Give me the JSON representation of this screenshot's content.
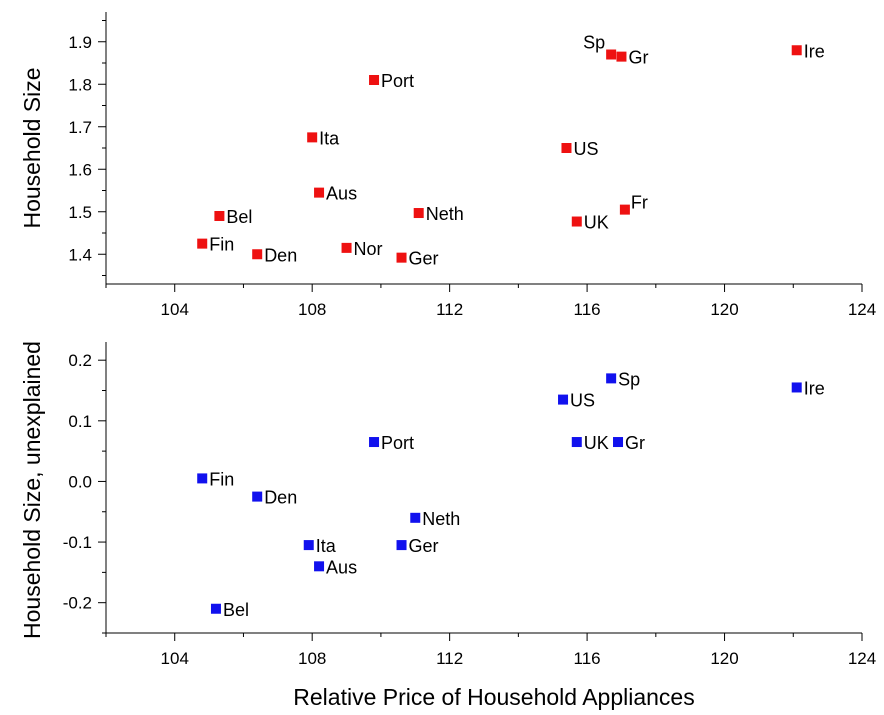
{
  "chart_data": [
    {
      "type": "scatter",
      "ylabel": "Household Size",
      "xlim": [
        102,
        124
      ],
      "ylim": [
        1.33,
        1.97
      ],
      "x_ticks": [
        104,
        108,
        112,
        116,
        120,
        124
      ],
      "y_ticks": [
        1.4,
        1.5,
        1.6,
        1.7,
        1.8,
        1.9
      ],
      "y_tick_labels": [
        "1.4",
        "1.5",
        "1.6",
        "1.7",
        "1.8",
        "1.9"
      ],
      "marker_color": "#ee1111",
      "points": [
        {
          "label": "Sp",
          "x": 116.7,
          "y": 1.87,
          "label_pos": "above-left"
        },
        {
          "label": "Gr",
          "x": 117.0,
          "y": 1.865,
          "label_pos": "right"
        },
        {
          "label": "Ire",
          "x": 122.1,
          "y": 1.88,
          "label_pos": "right"
        },
        {
          "label": "Port",
          "x": 109.8,
          "y": 1.81,
          "label_pos": "right"
        },
        {
          "label": "Ita",
          "x": 108.0,
          "y": 1.675,
          "label_pos": "right"
        },
        {
          "label": "US",
          "x": 115.4,
          "y": 1.65,
          "label_pos": "right"
        },
        {
          "label": "Aus",
          "x": 108.2,
          "y": 1.545,
          "label_pos": "right"
        },
        {
          "label": "Bel",
          "x": 105.3,
          "y": 1.49,
          "label_pos": "right"
        },
        {
          "label": "Neth",
          "x": 111.1,
          "y": 1.497,
          "label_pos": "right"
        },
        {
          "label": "Fr",
          "x": 117.1,
          "y": 1.505,
          "label_pos": "above-right"
        },
        {
          "label": "UK",
          "x": 115.7,
          "y": 1.477,
          "label_pos": "right"
        },
        {
          "label": "Fin",
          "x": 104.8,
          "y": 1.425,
          "label_pos": "right"
        },
        {
          "label": "Den",
          "x": 106.4,
          "y": 1.4,
          "label_pos": "right"
        },
        {
          "label": "Nor",
          "x": 109.0,
          "y": 1.415,
          "label_pos": "right"
        },
        {
          "label": "Ger",
          "x": 110.6,
          "y": 1.392,
          "label_pos": "right"
        }
      ]
    },
    {
      "type": "scatter",
      "xlabel": "Relative Price of Household Appliances",
      "ylabel": "Household Size, unexplained",
      "xlim": [
        102,
        124
      ],
      "ylim": [
        -0.25,
        0.23
      ],
      "x_ticks": [
        104,
        108,
        112,
        116,
        120,
        124
      ],
      "y_ticks": [
        -0.2,
        -0.1,
        0.0,
        0.1,
        0.2
      ],
      "y_tick_labels": [
        "-0.2",
        "-0.1",
        "0.0",
        "0.1",
        "0.2"
      ],
      "marker_color": "#1111ee",
      "points": [
        {
          "label": "Sp",
          "x": 116.7,
          "y": 0.17,
          "label_pos": "right"
        },
        {
          "label": "Ire",
          "x": 122.1,
          "y": 0.155,
          "label_pos": "right"
        },
        {
          "label": "US",
          "x": 115.3,
          "y": 0.135,
          "label_pos": "right"
        },
        {
          "label": "UK",
          "x": 115.7,
          "y": 0.065,
          "label_pos": "right"
        },
        {
          "label": "Gr",
          "x": 116.9,
          "y": 0.065,
          "label_pos": "right"
        },
        {
          "label": "Port",
          "x": 109.8,
          "y": 0.065,
          "label_pos": "right"
        },
        {
          "label": "Fin",
          "x": 104.8,
          "y": 0.005,
          "label_pos": "right"
        },
        {
          "label": "Den",
          "x": 106.4,
          "y": -0.025,
          "label_pos": "right"
        },
        {
          "label": "Neth",
          "x": 111.0,
          "y": -0.06,
          "label_pos": "right"
        },
        {
          "label": "Ita",
          "x": 107.9,
          "y": -0.105,
          "label_pos": "right"
        },
        {
          "label": "Ger",
          "x": 110.6,
          "y": -0.105,
          "label_pos": "right"
        },
        {
          "label": "Aus",
          "x": 108.2,
          "y": -0.14,
          "label_pos": "right"
        },
        {
          "label": "Bel",
          "x": 105.2,
          "y": -0.21,
          "label_pos": "right"
        }
      ]
    }
  ]
}
